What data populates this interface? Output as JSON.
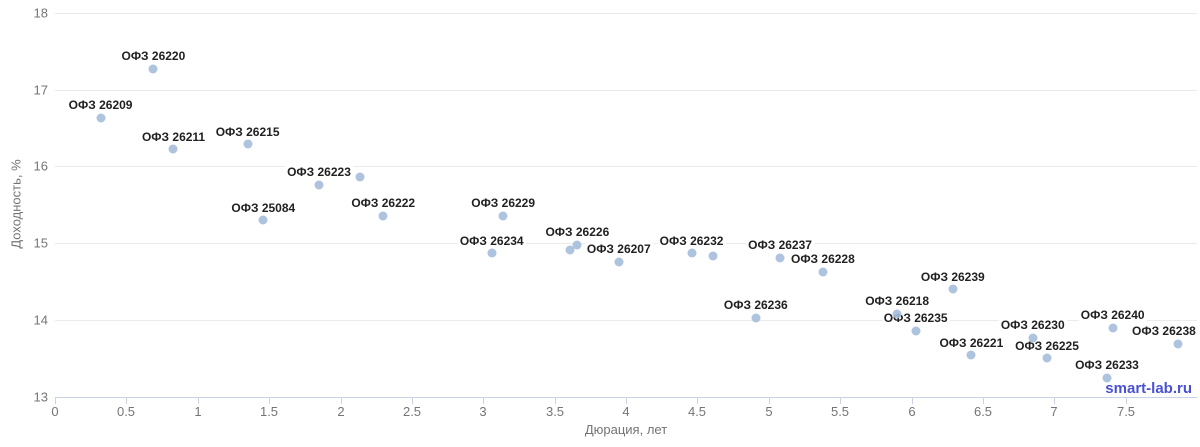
{
  "chart_data": {
    "type": "scatter",
    "title": "",
    "xlabel": "Дюрация, лет",
    "ylabel": "Доходность, %",
    "xlim": [
      0,
      8
    ],
    "ylim": [
      13,
      18
    ],
    "x_ticks": [
      0,
      0.5,
      1,
      1.5,
      2,
      2.5,
      3,
      3.5,
      4,
      4.5,
      5,
      5.5,
      6,
      6.5,
      7,
      7.5
    ],
    "y_ticks": [
      13,
      14,
      15,
      16,
      17,
      18
    ],
    "grid": "horizontal-only",
    "legend": "none",
    "points": [
      {
        "label": "ОФЗ 26209",
        "x": 0.32,
        "y": 16.63
      },
      {
        "label": "ОФЗ 26220",
        "x": 0.69,
        "y": 17.27
      },
      {
        "label": "ОФЗ 26211",
        "x": 0.83,
        "y": 16.22
      },
      {
        "label": "ОФЗ 26215",
        "x": 1.35,
        "y": 16.29
      },
      {
        "label": "ОФЗ 25084",
        "x": 1.46,
        "y": 15.3
      },
      {
        "label": "ОФЗ 26223",
        "x": 1.85,
        "y": 15.76
      },
      {
        "label": "",
        "x": 2.14,
        "y": 15.86
      },
      {
        "label": "ОФЗ 26222",
        "x": 2.3,
        "y": 15.36
      },
      {
        "label": "ОФЗ 26234",
        "x": 3.06,
        "y": 14.87
      },
      {
        "label": "ОФЗ 26229",
        "x": 3.14,
        "y": 15.36
      },
      {
        "label": "",
        "x": 3.61,
        "y": 14.91
      },
      {
        "label": "ОФЗ 26226",
        "x": 3.66,
        "y": 14.98
      },
      {
        "label": "ОФЗ 26207",
        "x": 3.95,
        "y": 14.76
      },
      {
        "label": "ОФЗ 26232",
        "x": 4.46,
        "y": 14.87
      },
      {
        "label": "",
        "x": 4.61,
        "y": 14.84
      },
      {
        "label": "ОФЗ 26236",
        "x": 4.91,
        "y": 14.03
      },
      {
        "label": "ОФЗ 26237",
        "x": 5.08,
        "y": 14.81
      },
      {
        "label": "ОФЗ 26228",
        "x": 5.38,
        "y": 14.63
      },
      {
        "label": "ОФЗ 26218",
        "x": 5.9,
        "y": 14.08
      },
      {
        "label": "ОФЗ 26235",
        "x": 6.03,
        "y": 13.86
      },
      {
        "label": "ОФЗ 26239",
        "x": 6.29,
        "y": 14.4
      },
      {
        "label": "ОФЗ 26221",
        "x": 6.42,
        "y": 13.54
      },
      {
        "label": "ОФЗ 26230",
        "x": 6.85,
        "y": 13.77
      },
      {
        "label": "ОФЗ 26225",
        "x": 6.95,
        "y": 13.5
      },
      {
        "label": "ОФЗ 26233",
        "x": 7.37,
        "y": 13.25
      },
      {
        "label": "ОФЗ 26240",
        "x": 7.41,
        "y": 13.9
      },
      {
        "label": "ОФЗ 26238",
        "x": 7.87,
        "y": 13.69
      }
    ]
  },
  "watermark": "smart-lab.ru",
  "colors": {
    "dot": "rgba(165,188,218,0.9)",
    "point_label": "#212121",
    "grid": "#ebebeb",
    "axis": "#c9d3e4",
    "tick_text": "#757575",
    "axis_title_text": "#737373",
    "watermark": "#4a50d2"
  }
}
